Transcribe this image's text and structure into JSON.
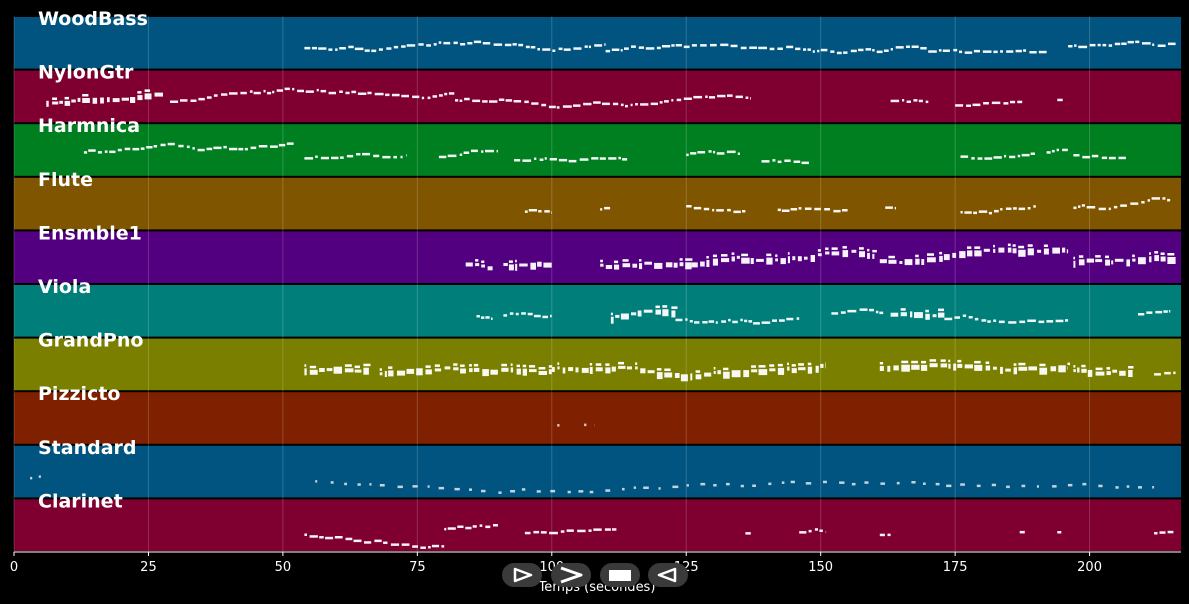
{
  "chart_data": {
    "type": "piano-roll",
    "xlabel": "Temps (secondes)",
    "xlim": [
      0,
      217
    ],
    "xticks": [
      0,
      25,
      50,
      75,
      100,
      125,
      150,
      175,
      200
    ],
    "grid": true,
    "tracks": [
      {
        "name": "WoodBass",
        "color": "#00547f",
        "segments": [
          [
            54,
            110,
            "mono"
          ],
          [
            110,
            170,
            "mono"
          ],
          [
            170,
            192,
            "mono"
          ],
          [
            196,
            216,
            "mono"
          ]
        ]
      },
      {
        "name": "NylonGtr",
        "color": "#7f0030",
        "segments": [
          [
            6,
            28,
            "dense"
          ],
          [
            29,
            82,
            "mono"
          ],
          [
            82,
            137,
            "mono"
          ],
          [
            163,
            170,
            "mono"
          ],
          [
            175,
            188,
            "mono"
          ],
          [
            194,
            195,
            "mono"
          ]
        ]
      },
      {
        "name": "Harmnica",
        "color": "#007f21",
        "segments": [
          [
            13,
            52,
            "mono"
          ],
          [
            54,
            73,
            "mono"
          ],
          [
            79,
            90,
            "mono"
          ],
          [
            93,
            114,
            "mono"
          ],
          [
            125,
            135,
            "mono"
          ],
          [
            139,
            148,
            "mono"
          ],
          [
            176,
            190,
            "mono"
          ],
          [
            192,
            196,
            "mono"
          ],
          [
            197,
            207,
            "mono"
          ]
        ]
      },
      {
        "name": "Flute",
        "color": "#7f5500",
        "segments": [
          [
            95,
            100,
            "mono"
          ],
          [
            109,
            111,
            "mono"
          ],
          [
            125,
            136,
            "mono"
          ],
          [
            142,
            155,
            "mono"
          ],
          [
            162,
            164,
            "mono"
          ],
          [
            176,
            190,
            "mono"
          ],
          [
            197,
            215,
            "mono"
          ]
        ]
      },
      {
        "name": "Ensmble1",
        "color": "#52007f",
        "segments": [
          [
            84,
            89,
            "dense"
          ],
          [
            91,
            100,
            "dense"
          ],
          [
            109,
            126,
            "dense"
          ],
          [
            126,
            160,
            "dense"
          ],
          [
            161,
            196,
            "dense"
          ],
          [
            197,
            216,
            "dense"
          ]
        ]
      },
      {
        "name": "Viola",
        "color": "#007f7a",
        "segments": [
          [
            86,
            89,
            "mono"
          ],
          [
            91,
            100,
            "mono"
          ],
          [
            111,
            123,
            "dense"
          ],
          [
            123,
            146,
            "mono"
          ],
          [
            152,
            162,
            "mono"
          ],
          [
            163,
            173,
            "dense"
          ],
          [
            173,
            196,
            "mono"
          ],
          [
            209,
            215,
            "mono"
          ]
        ]
      },
      {
        "name": "GrandPno",
        "color": "#7a7f00",
        "segments": [
          [
            54,
            66,
            "dense"
          ],
          [
            68,
            100,
            "dense"
          ],
          [
            100,
            151,
            "dense"
          ],
          [
            161,
            196,
            "dense"
          ],
          [
            197,
            208,
            "dense"
          ],
          [
            212,
            216,
            "mono"
          ]
        ]
      },
      {
        "name": "Pizzicto",
        "color": "#7f2100",
        "segments": [
          [
            101,
            103,
            "sparse"
          ],
          [
            106,
            108,
            "sparse"
          ]
        ]
      },
      {
        "name": "Standard",
        "color": "#00547f",
        "segments": [
          [
            3,
            5,
            "sparse"
          ],
          [
            56,
            212,
            "sparse"
          ]
        ]
      },
      {
        "name": "Clarinet",
        "color": "#7f0030",
        "segments": [
          [
            54,
            80,
            "mono"
          ],
          [
            80,
            90,
            "mono"
          ],
          [
            95,
            112,
            "mono"
          ],
          [
            136,
            137,
            "mono"
          ],
          [
            146,
            151,
            "mono"
          ],
          [
            161,
            163,
            "mono"
          ],
          [
            187,
            188,
            "mono"
          ],
          [
            194,
            195,
            "mono"
          ],
          [
            212,
            216,
            "mono"
          ]
        ]
      }
    ]
  },
  "controls": {
    "play_icon": "play-icon",
    "fast_forward_icon": "fast-forward-icon",
    "stop_icon": "stop-icon",
    "rewind_icon": "rewind-icon"
  }
}
